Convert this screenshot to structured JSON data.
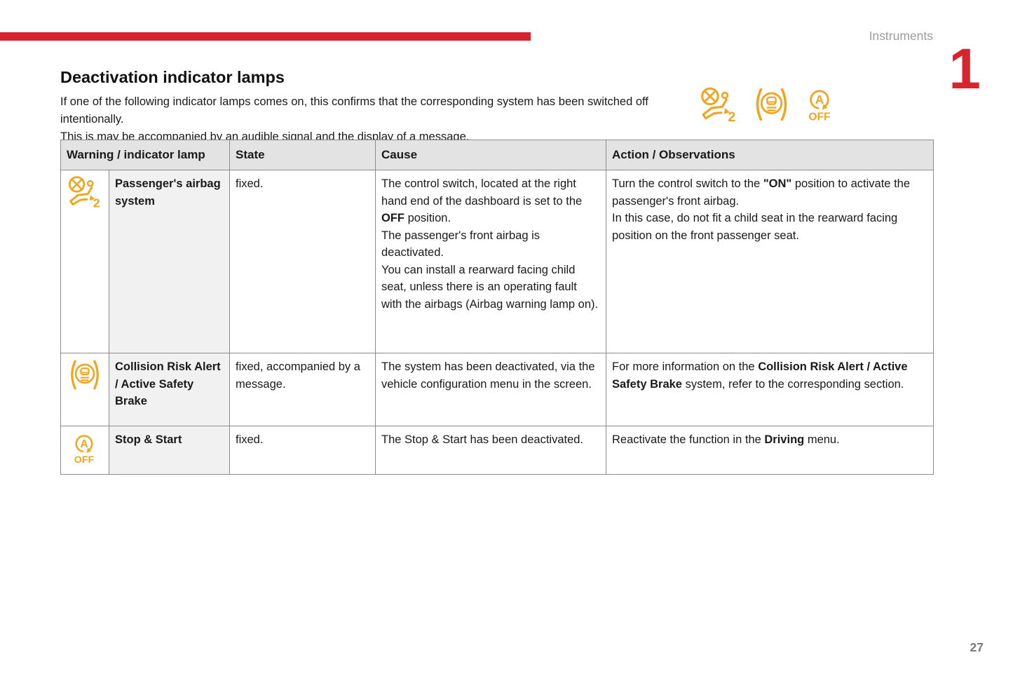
{
  "page": {
    "section_label": "Instruments",
    "chapter_number": "1",
    "title": "Deactivation indicator lamps",
    "intro_line1": "If one of the following indicator lamps comes on, this confirms that the corresponding system has been switched off intentionally.",
    "intro_line2": "This is may be accompanied by an audible signal and the display of a message.",
    "page_number": "27"
  },
  "colors": {
    "accent_red": "#d8242d",
    "warning_amber": "#efa51f",
    "table_border": "#8c8c8c",
    "header_bg": "#e3e3e3",
    "lamp_col_bg": "#f1f1f2"
  },
  "indicator_icon_strip": [
    "passenger-airbag-deactivated-icon",
    "collision-risk-alert-icon",
    "stop-start-off-icon"
  ],
  "table": {
    "headers": [
      "Warning / indicator lamp",
      "State",
      "Cause",
      "Action / Observations"
    ],
    "rows": [
      {
        "icon": "passenger-airbag-deactivated-icon",
        "lamp": "Passenger's airbag system",
        "state": [
          [
            {
              "t": "fixed.",
              "b": false
            }
          ]
        ],
        "cause": [
          [
            {
              "t": "The control switch, located at the right hand end of the dashboard is set to the ",
              "b": false
            },
            {
              "t": "OFF",
              "b": true
            },
            {
              "t": " position.",
              "b": false
            }
          ],
          [
            {
              "t": "The passenger's front airbag is deactivated.",
              "b": false
            }
          ],
          [
            {
              "t": "You can install a rearward facing child seat, unless there is an operating fault with the airbags (Airbag warning lamp on).",
              "b": false
            }
          ]
        ],
        "action": [
          [
            {
              "t": "Turn the control switch to the ",
              "b": false
            },
            {
              "t": "\"ON\"",
              "b": true
            },
            {
              "t": " position to activate the passenger's front airbag.",
              "b": false
            }
          ],
          [
            {
              "t": "In this case, do not fit a child seat in the rearward facing position on the front passenger seat.",
              "b": false
            }
          ]
        ]
      },
      {
        "icon": "collision-risk-alert-icon",
        "lamp": "Collision Risk Alert / Active Safety Brake",
        "state": [
          [
            {
              "t": "fixed, accompanied by a message.",
              "b": false
            }
          ]
        ],
        "cause": [
          [
            {
              "t": "The system has been deactivated, via the vehicle configuration menu in the screen.",
              "b": false
            }
          ]
        ],
        "action": [
          [
            {
              "t": "For more information on the ",
              "b": false
            },
            {
              "t": "Collision Risk Alert / Active Safety Brake",
              "b": true
            },
            {
              "t": " system, refer to the corresponding section.",
              "b": false
            }
          ]
        ]
      },
      {
        "icon": "stop-start-off-icon",
        "lamp": "Stop & Start",
        "state": [
          [
            {
              "t": "fixed.",
              "b": false
            }
          ]
        ],
        "cause": [
          [
            {
              "t": "The Stop & Start has been deactivated.",
              "b": false
            }
          ]
        ],
        "action": [
          [
            {
              "t": "Reactivate the function in the ",
              "b": false
            },
            {
              "t": "Driving",
              "b": true
            },
            {
              "t": " menu.",
              "b": false
            }
          ]
        ]
      }
    ]
  }
}
